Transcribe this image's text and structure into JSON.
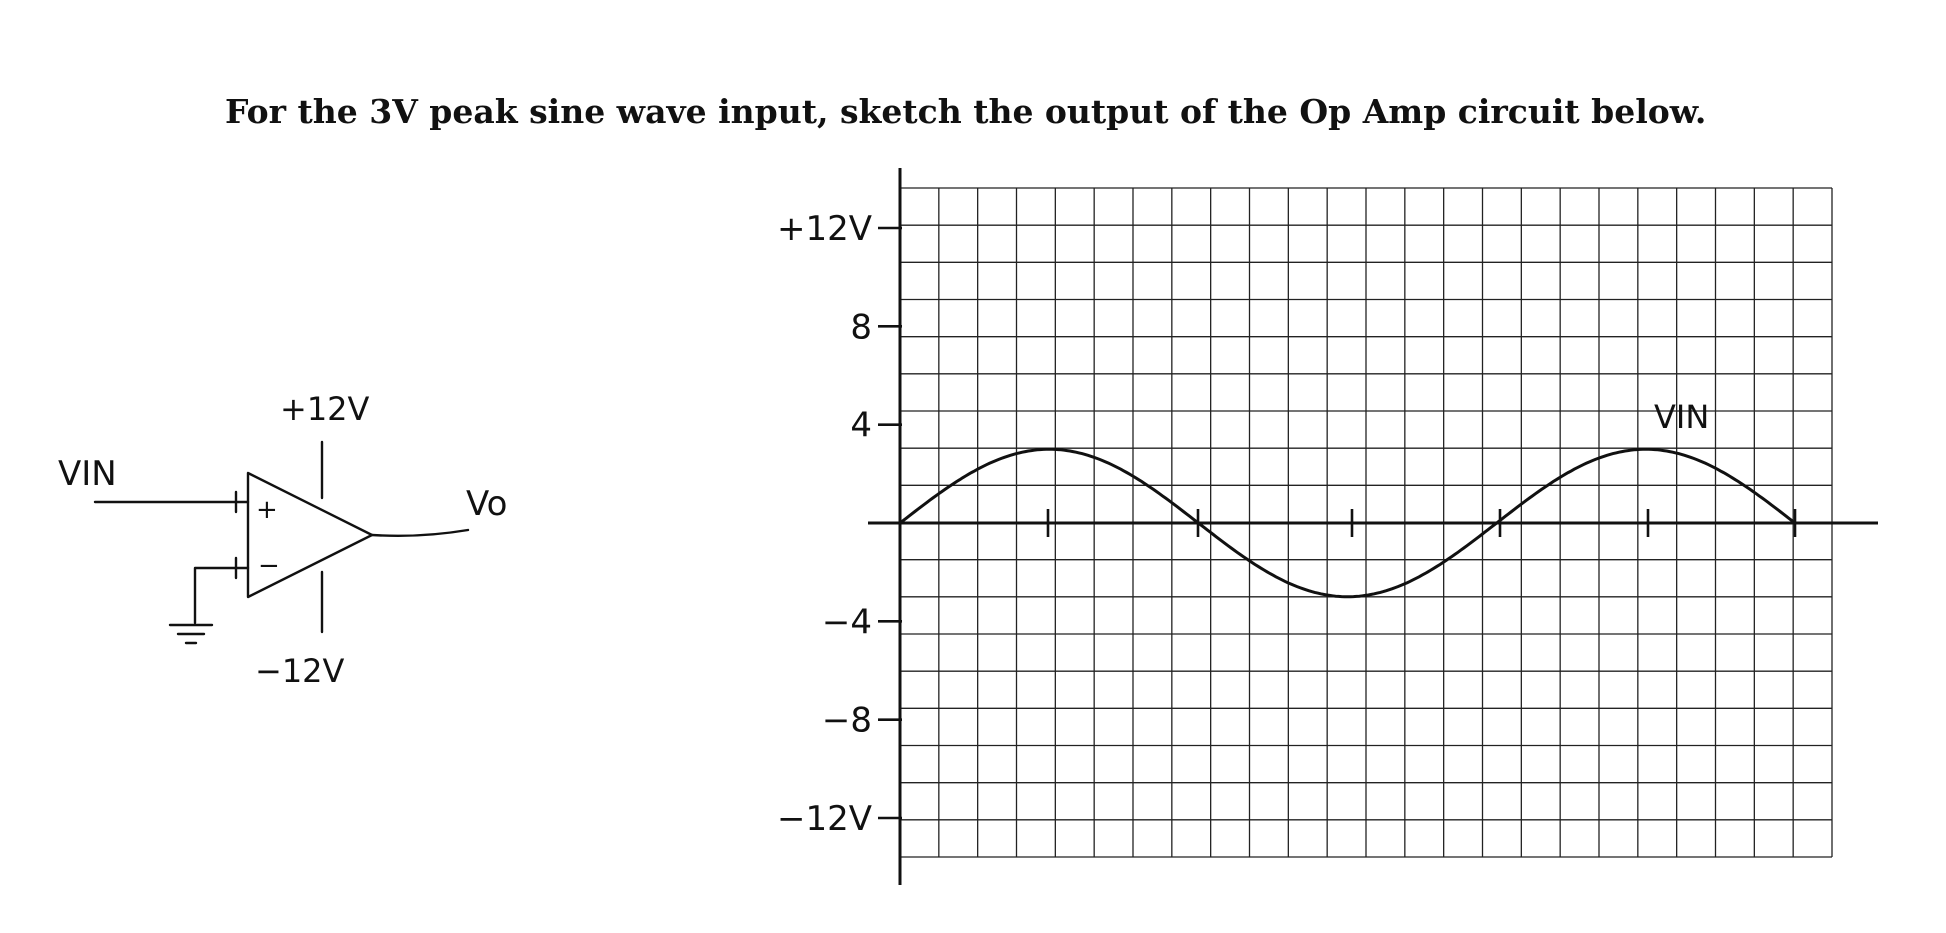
{
  "question": "For the 3V peak sine wave input, sketch the output of the Op Amp circuit below.",
  "circuit": {
    "input_label": "VIN",
    "output_label": "Vo",
    "supply_positive": "+12V",
    "supply_negative": "−12V",
    "noninverting_input": "+",
    "inverting_input": "−"
  },
  "graph": {
    "y_tick_labels": [
      "+12V",
      "8",
      "4",
      "−4",
      "−8",
      "−12V"
    ],
    "y_tick_values": [
      12,
      8,
      4,
      -4,
      -8,
      -12
    ],
    "curve_label": "VIN",
    "input_peak_volts": 3
  }
}
